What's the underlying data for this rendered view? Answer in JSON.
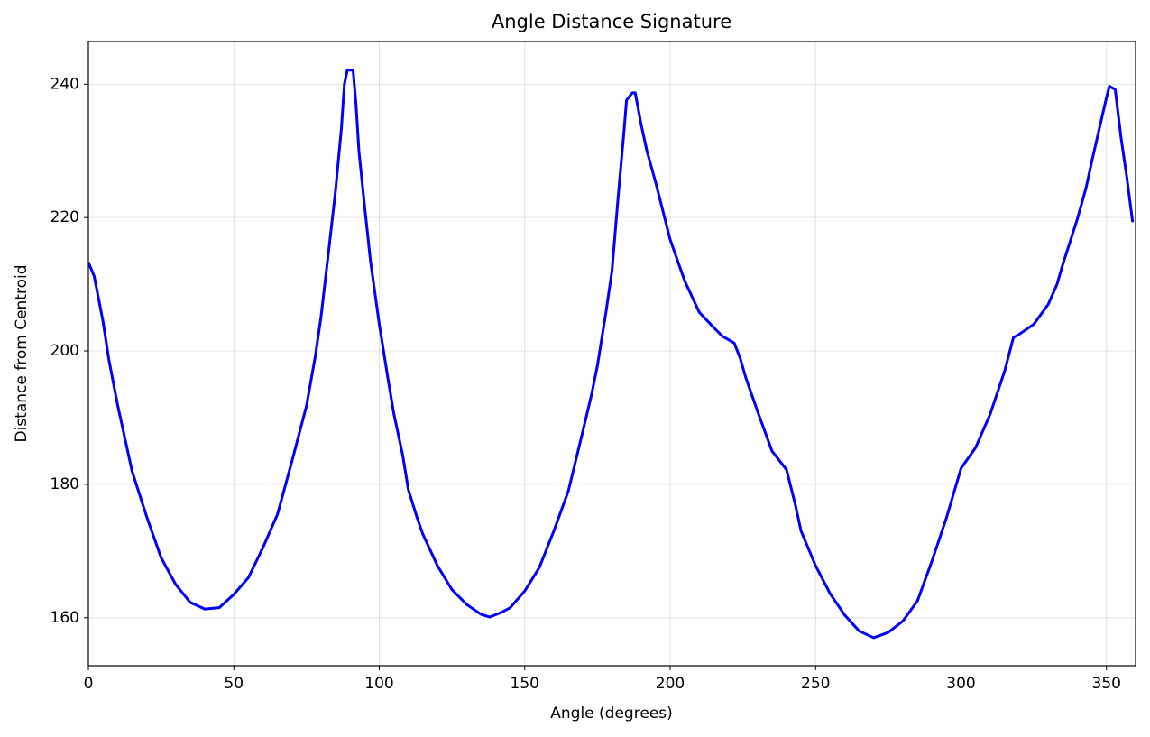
{
  "chart_data": {
    "type": "line",
    "title": "Angle Distance Signature",
    "xlabel": "Angle (degrees)",
    "ylabel": "Distance from Centroid",
    "x": [
      0,
      2,
      5,
      7,
      10,
      13,
      15,
      20,
      25,
      30,
      35,
      40,
      45,
      50,
      55,
      60,
      65,
      70,
      75,
      78,
      80,
      83,
      85,
      87,
      88,
      89,
      91,
      92,
      93,
      95,
      97,
      100,
      103,
      105,
      108,
      110,
      113,
      115,
      120,
      125,
      130,
      135,
      138,
      142,
      145,
      150,
      155,
      160,
      165,
      170,
      173,
      175,
      178,
      180,
      182,
      184,
      185,
      187,
      188,
      190,
      192,
      195,
      200,
      205,
      210,
      215,
      218,
      222,
      224,
      226,
      230,
      235,
      240,
      243,
      245,
      250,
      255,
      260,
      265,
      270,
      275,
      280,
      285,
      290,
      295,
      300,
      305,
      310,
      315,
      318,
      320,
      325,
      330,
      333,
      335,
      340,
      343,
      345,
      350,
      351,
      353,
      355,
      357,
      359
    ],
    "series": [
      {
        "name": "Distance",
        "color": "#0000ff",
        "values": [
          213.3,
          211.2,
          204.5,
          198.8,
          192,
          186,
          182,
          175.2,
          169,
          165,
          162.3,
          161.3,
          161.5,
          163.5,
          166,
          170.5,
          175.5,
          183.5,
          191.8,
          199.2,
          205.2,
          216.5,
          224.2,
          233.5,
          240,
          242.1,
          242.1,
          237,
          230,
          221.5,
          213.4,
          204,
          195.8,
          190.6,
          184.5,
          179.2,
          175,
          172.5,
          167.8,
          164.2,
          162,
          160.5,
          160.1,
          160.8,
          161.5,
          164,
          167.5,
          173,
          179,
          188,
          193.5,
          197.8,
          206,
          212,
          222.5,
          232.3,
          237.6,
          238.7,
          238.7,
          234,
          230,
          225.3,
          216.7,
          210.5,
          205.8,
          203.5,
          202.2,
          201.2,
          199,
          196,
          191,
          185,
          182.2,
          177,
          173,
          167.8,
          163.6,
          160.4,
          158,
          157,
          157.8,
          159.5,
          162.5,
          168.5,
          175,
          182.4,
          185.5,
          190.5,
          197,
          202,
          202.5,
          204,
          207,
          210,
          213,
          219.8,
          224.5,
          228.5,
          238,
          239.7,
          239.2,
          232,
          226,
          219.3
        ]
      }
    ],
    "xlim": [
      0,
      360
    ],
    "ylim": [
      152.8,
      246.4
    ],
    "xticks": [
      0,
      50,
      100,
      150,
      200,
      250,
      300,
      350
    ],
    "yticks": [
      160,
      180,
      200,
      220,
      240
    ],
    "grid": true
  }
}
